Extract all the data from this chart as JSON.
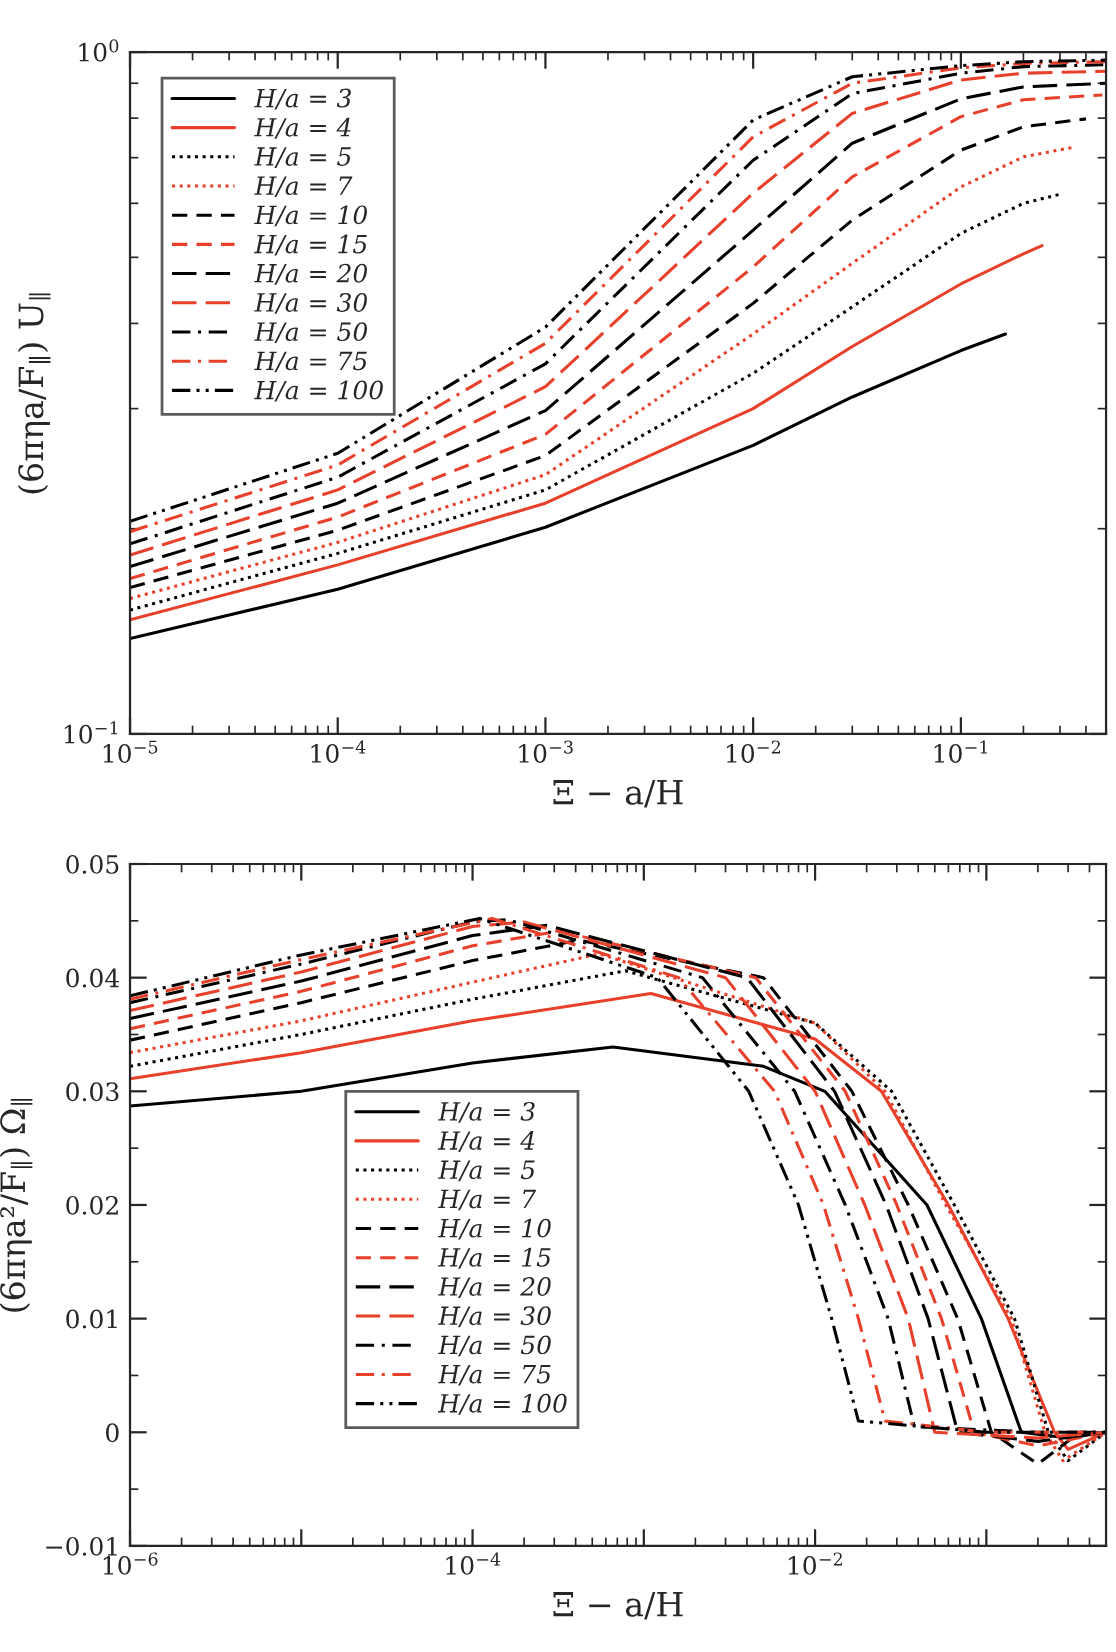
{
  "chart_data": [
    {
      "type": "line",
      "xlabel": "Ξ − a/H",
      "ylabel": "(6πηa/F$_{∥}$) U$_{∥}$",
      "log": "xy",
      "xlim": [
        1e-05,
        0.5
      ],
      "ylim": [
        0.1,
        1
      ],
      "xticks": [
        {
          "value": 1e-05,
          "label": "10$^{−5}$"
        },
        {
          "value": 0.0001,
          "label": "10$^{−4}$"
        },
        {
          "value": 0.001,
          "label": "10$^{−3}$"
        },
        {
          "value": 0.01,
          "label": "10$^{−2}$"
        },
        {
          "value": 0.1,
          "label": "10$^{−1}$"
        }
      ],
      "yticks": [
        {
          "value": 0.1,
          "label": "10$^{−1}$"
        },
        {
          "value": 1,
          "label": "10$^{0}$"
        }
      ],
      "legend": "top left",
      "grid": false,
      "series": [
        {
          "name": "H/a = 3",
          "color": "#000000",
          "line_style": "solid",
          "x": [
            1e-05,
            0.0001,
            0.001,
            0.01,
            0.03,
            0.1,
            0.164
          ],
          "values": [
            0.138,
            0.163,
            0.201,
            0.265,
            0.312,
            0.365,
            0.386
          ]
        },
        {
          "name": "H/a = 4",
          "color": "#e8402a",
          "line_style": "solid",
          "x": [
            1e-05,
            0.0001,
            0.001,
            0.01,
            0.03,
            0.1,
            0.2,
            0.246
          ],
          "values": [
            0.147,
            0.177,
            0.218,
            0.3,
            0.37,
            0.457,
            0.506,
            0.52
          ]
        },
        {
          "name": "H/a = 5",
          "color": "#000000",
          "line_style": "dotted",
          "x": [
            1e-05,
            0.0001,
            0.001,
            0.01,
            0.03,
            0.1,
            0.2,
            0.296
          ],
          "values": [
            0.152,
            0.184,
            0.228,
            0.338,
            0.423,
            0.542,
            0.6,
            0.618
          ]
        },
        {
          "name": "H/a = 7",
          "color": "#e8402a",
          "line_style": "dotted",
          "x": [
            1e-05,
            0.0001,
            0.001,
            0.01,
            0.03,
            0.1,
            0.2,
            0.356
          ],
          "values": [
            0.158,
            0.191,
            0.24,
            0.386,
            0.49,
            0.634,
            0.702,
            0.726
          ]
        },
        {
          "name": "H/a = 10",
          "color": "#000000",
          "line_style": "dashed",
          "x": [
            1e-05,
            0.0001,
            0.001,
            0.01,
            0.03,
            0.1,
            0.2,
            0.4
          ],
          "values": [
            0.164,
            0.199,
            0.256,
            0.428,
            0.567,
            0.718,
            0.777,
            0.798
          ]
        },
        {
          "name": "H/a = 15",
          "color": "#e8402a",
          "line_style": "dashed",
          "x": [
            1e-05,
            0.0001,
            0.001,
            0.01,
            0.03,
            0.1,
            0.2,
            0.48
          ],
          "values": [
            0.169,
            0.208,
            0.275,
            0.484,
            0.656,
            0.804,
            0.851,
            0.865
          ]
        },
        {
          "name": "H/a = 20",
          "color": "#000000",
          "line_style": "longdashed",
          "x": [
            1e-05,
            0.0001,
            0.001,
            0.01,
            0.03,
            0.1,
            0.2,
            0.5
          ],
          "values": [
            0.176,
            0.218,
            0.298,
            0.548,
            0.735,
            0.854,
            0.889,
            0.9
          ]
        },
        {
          "name": "H/a = 30",
          "color": "#e8402a",
          "line_style": "longdashed",
          "x": [
            1e-05,
            0.0001,
            0.001,
            0.01,
            0.03,
            0.1,
            0.2,
            0.5
          ],
          "values": [
            0.183,
            0.228,
            0.323,
            0.621,
            0.813,
            0.91,
            0.931,
            0.937
          ]
        },
        {
          "name": "H/a = 50",
          "color": "#000000",
          "line_style": "dashdot",
          "x": [
            1e-05,
            0.0001,
            0.001,
            0.01,
            0.03,
            0.1,
            0.2,
            0.5
          ],
          "values": [
            0.19,
            0.238,
            0.349,
            0.694,
            0.869,
            0.931,
            0.952,
            0.958
          ]
        },
        {
          "name": "H/a = 75",
          "color": "#e8402a",
          "line_style": "dashdot",
          "x": [
            1e-05,
            0.0001,
            0.001,
            0.01,
            0.03,
            0.1,
            0.2,
            0.5
          ],
          "values": [
            0.198,
            0.248,
            0.374,
            0.751,
            0.9,
            0.948,
            0.962,
            0.968
          ]
        },
        {
          "name": "H/a = 100",
          "color": "#000000",
          "line_style": "dashdotdot",
          "x": [
            1e-05,
            0.0001,
            0.001,
            0.01,
            0.03,
            0.1,
            0.2,
            0.5
          ],
          "values": [
            0.205,
            0.258,
            0.395,
            0.795,
            0.92,
            0.955,
            0.968,
            0.973
          ]
        }
      ]
    },
    {
      "type": "line",
      "xlabel": "Ξ − a/H",
      "ylabel": "(6πηa²/F$_{∥}$) Ω$_{∥}$",
      "log": "x",
      "xlim": [
        1e-06,
        0.5
      ],
      "ylim": [
        -0.01,
        0.05
      ],
      "xticks": [
        {
          "value": 1e-06,
          "label": "10$^{−6}$"
        },
        {
          "value": 1e-05,
          "label": null
        },
        {
          "value": 0.0001,
          "label": "10$^{−4}$"
        },
        {
          "value": 0.001,
          "label": null
        },
        {
          "value": 0.01,
          "label": "10$^{−2}$"
        },
        {
          "value": 0.1,
          "label": null
        }
      ],
      "yticks": [
        {
          "value": -0.01,
          "label": "−0.01"
        },
        0,
        0.01,
        0.02,
        0.03,
        0.04,
        0.05
      ],
      "legend": "center",
      "grid": false,
      "series": [
        {
          "name": "H/a = 3",
          "color": "#000000",
          "line_style": "solid",
          "x": [
            1e-06,
            1e-05,
            0.0001,
            0.00066,
            0.005,
            0.0114,
            0.045,
            0.0935,
            0.16,
            0.3,
            0.5
          ],
          "values": [
            0.0287,
            0.03,
            0.0325,
            0.0339,
            0.0322,
            0.03,
            0.02,
            0.01,
            0,
            -0.0005,
            0
          ]
        },
        {
          "name": "H/a = 4",
          "color": "#e8402a",
          "line_style": "solid",
          "x": [
            1e-06,
            1e-05,
            0.0001,
            0.0011,
            0.01,
            0.0244,
            0.06,
            0.134,
            0.25,
            0.3,
            0.5
          ],
          "values": [
            0.0311,
            0.0334,
            0.0362,
            0.0386,
            0.0346,
            0.03,
            0.02,
            0.01,
            0,
            -0.0015,
            0
          ]
        },
        {
          "name": "H/a = 5",
          "color": "#000000",
          "line_style": "dotted",
          "x": [
            1e-06,
            1e-05,
            0.0001,
            0.00078,
            0.01,
            0.028,
            0.065,
            0.146,
            0.23,
            0.3,
            0.5
          ],
          "values": [
            0.0322,
            0.035,
            0.0381,
            0.0406,
            0.036,
            0.03,
            0.02,
            0.01,
            0,
            -0.0025,
            0
          ]
        },
        {
          "name": "H/a = 7",
          "color": "#e8402a",
          "line_style": "dotted",
          "x": [
            1e-06,
            1e-05,
            0.0001,
            0.00055,
            0.01,
            0.0256,
            0.058,
            0.14,
            0.22,
            0.28,
            0.5
          ],
          "values": [
            0.0334,
            0.0362,
            0.0396,
            0.0421,
            0.036,
            0.03,
            0.02,
            0.01,
            0,
            -0.0025,
            0
          ]
        },
        {
          "name": "H/a = 10",
          "color": "#000000",
          "line_style": "dashed",
          "x": [
            1e-06,
            1e-05,
            0.0001,
            0.00042,
            0.005,
            0.0164,
            0.035,
            0.068,
            0.107,
            0.2,
            0.35,
            0.5
          ],
          "values": [
            0.0345,
            0.0378,
            0.0415,
            0.0433,
            0.04,
            0.03,
            0.02,
            0.01,
            0,
            -0.0028,
            0,
            0
          ]
        },
        {
          "name": "H/a = 15",
          "color": "#e8402a",
          "line_style": "dashed",
          "x": [
            1e-06,
            1e-05,
            0.0001,
            0.00032,
            0.0045,
            0.015,
            0.03,
            0.0547,
            0.085,
            0.2,
            0.5
          ],
          "values": [
            0.0355,
            0.0388,
            0.0428,
            0.0441,
            0.04,
            0.03,
            0.02,
            0.01,
            0,
            -0.0012,
            0
          ]
        },
        {
          "name": "H/a = 20",
          "color": "#000000",
          "line_style": "longdashed",
          "x": [
            1e-06,
            1e-05,
            0.0001,
            0.00027,
            0.004,
            0.013,
            0.026,
            0.0457,
            0.068,
            0.2,
            0.5
          ],
          "values": [
            0.0364,
            0.0397,
            0.0437,
            0.0446,
            0.04,
            0.03,
            0.02,
            0.01,
            0,
            -0.0008,
            0
          ]
        },
        {
          "name": "H/a = 30",
          "color": "#e8402a",
          "line_style": "longdashed",
          "x": [
            1e-06,
            1e-05,
            0.0001,
            0.0002,
            0.003,
            0.01,
            0.0195,
            0.035,
            0.05,
            0.2,
            0.5
          ],
          "values": [
            0.0371,
            0.0405,
            0.0445,
            0.0449,
            0.04,
            0.03,
            0.02,
            0.01,
            0,
            -0.0005,
            0
          ]
        },
        {
          "name": "H/a = 50",
          "color": "#000000",
          "line_style": "dashdot",
          "x": [
            1e-06,
            1e-05,
            0.0001,
            0.00016,
            0.0022,
            0.0076,
            0.015,
            0.0267,
            0.038,
            0.2,
            0.5
          ],
          "values": [
            0.0378,
            0.0412,
            0.0449,
            0.0451,
            0.04,
            0.03,
            0.02,
            0.01,
            0.0005,
            0,
            0
          ]
        },
        {
          "name": "H/a = 75",
          "color": "#e8402a",
          "line_style": "dashdot",
          "x": [
            1e-06,
            1e-05,
            0.00013,
            0.0016,
            0.0058,
            0.0112,
            0.0179,
            0.0256,
            0.1,
            0.5
          ],
          "values": [
            0.0381,
            0.0416,
            0.0452,
            0.04,
            0.03,
            0.02,
            0.01,
            0.001,
            0,
            0
          ]
        },
        {
          "name": "H/a = 100",
          "color": "#000000",
          "line_style": "dashdotdot",
          "x": [
            1e-06,
            1e-05,
            0.00011,
            0.0012,
            0.0041,
            0.008,
            0.0125,
            0.0179,
            0.1,
            0.5
          ],
          "values": [
            0.0384,
            0.042,
            0.0452,
            0.04,
            0.03,
            0.02,
            0.01,
            0.001,
            0,
            0
          ]
        }
      ]
    }
  ]
}
